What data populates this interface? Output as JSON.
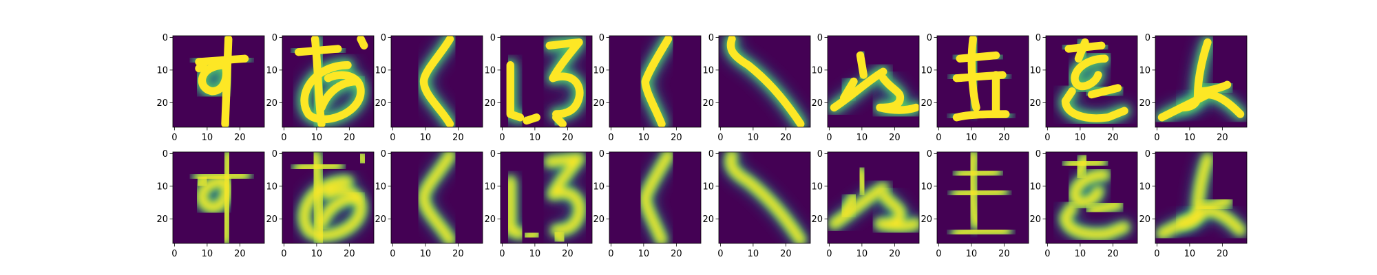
{
  "figure": {
    "type": "image-grid",
    "rows": 2,
    "cols": 10,
    "colormap": "viridis",
    "background_color": "#440154",
    "foreground_color": "#fde725"
  },
  "chart_data": {
    "type": "heatmap",
    "image_size": [
      28,
      28
    ],
    "xlim": [
      -0.5,
      27.5
    ],
    "ylim": [
      27.5,
      -0.5
    ],
    "xticks": [
      0,
      10,
      20
    ],
    "yticks": [
      0,
      10,
      20
    ],
    "xtick_labels": [
      "0",
      "10",
      "20"
    ],
    "ytick_labels": [
      "0",
      "10",
      "20"
    ],
    "grid": false,
    "rows": [
      {
        "panels": [
          {
            "glyph": "す"
          },
          {
            "glyph": "あ"
          },
          {
            "glyph": "く"
          },
          {
            "glyph": "いろ"
          },
          {
            "glyph": "く"
          },
          {
            "glyph": "く"
          },
          {
            "glyph": "や"
          },
          {
            "glyph": "き"
          },
          {
            "glyph": "を"
          },
          {
            "glyph": "ふ"
          }
        ]
      },
      {
        "panels": [
          {
            "glyph": "す"
          },
          {
            "glyph": "あ"
          },
          {
            "glyph": "く"
          },
          {
            "glyph": "いろ"
          },
          {
            "glyph": "く"
          },
          {
            "glyph": "く"
          },
          {
            "glyph": "や"
          },
          {
            "glyph": "き"
          },
          {
            "glyph": "を"
          },
          {
            "glyph": "ふ"
          }
        ]
      }
    ]
  }
}
